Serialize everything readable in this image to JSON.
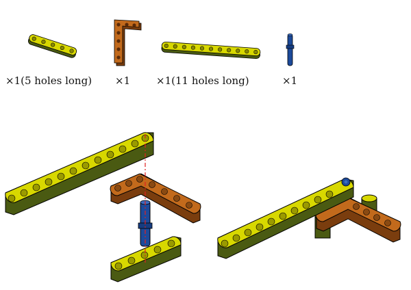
{
  "parts_list": [
    {
      "part": "yellow beam",
      "hole_count": 5,
      "label": "×1(5 holes long)"
    },
    {
      "part": "orange L-beam",
      "label": "×1"
    },
    {
      "part": "yellow beam",
      "hole_count": 11,
      "label": "×1(11 holes long)"
    },
    {
      "part": "blue axle pin",
      "label": "×1"
    }
  ],
  "assembly": {
    "exploded_view": {
      "guide_line": "red dashed alignment line"
    },
    "assembled_view": {}
  },
  "colors": {
    "yellow_top": "#d8d800",
    "yellow_side": "#4a5a12",
    "orange_top": "#c26a1c",
    "orange_side": "#7a3d0e",
    "blue": "#1c4a9a",
    "guide": "#e02020",
    "outline": "#000000"
  }
}
